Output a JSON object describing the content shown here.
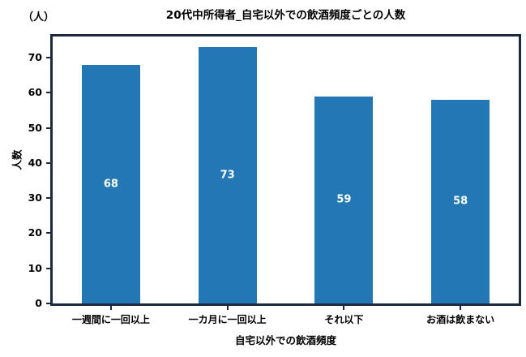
{
  "chart_data": {
    "type": "bar",
    "title": "20代中所得者_自宅以外での飲酒頻度ごとの人数",
    "unit_label": "（人）",
    "xlabel": "自宅以外での飲酒頻度",
    "ylabel": "人数",
    "categories": [
      "一週間に一回以上",
      "一カ月に一回以上",
      "それ以下",
      "お酒は飲まない"
    ],
    "values": [
      68,
      73,
      59,
      58
    ],
    "yticks": [
      0,
      10,
      20,
      30,
      40,
      50,
      60,
      70
    ],
    "ylim": [
      0,
      76
    ],
    "grid": false,
    "legend": null,
    "bar_color": "#2277b4",
    "bar_label_color": "#ffffff",
    "spine_color": "#1b2a41"
  }
}
